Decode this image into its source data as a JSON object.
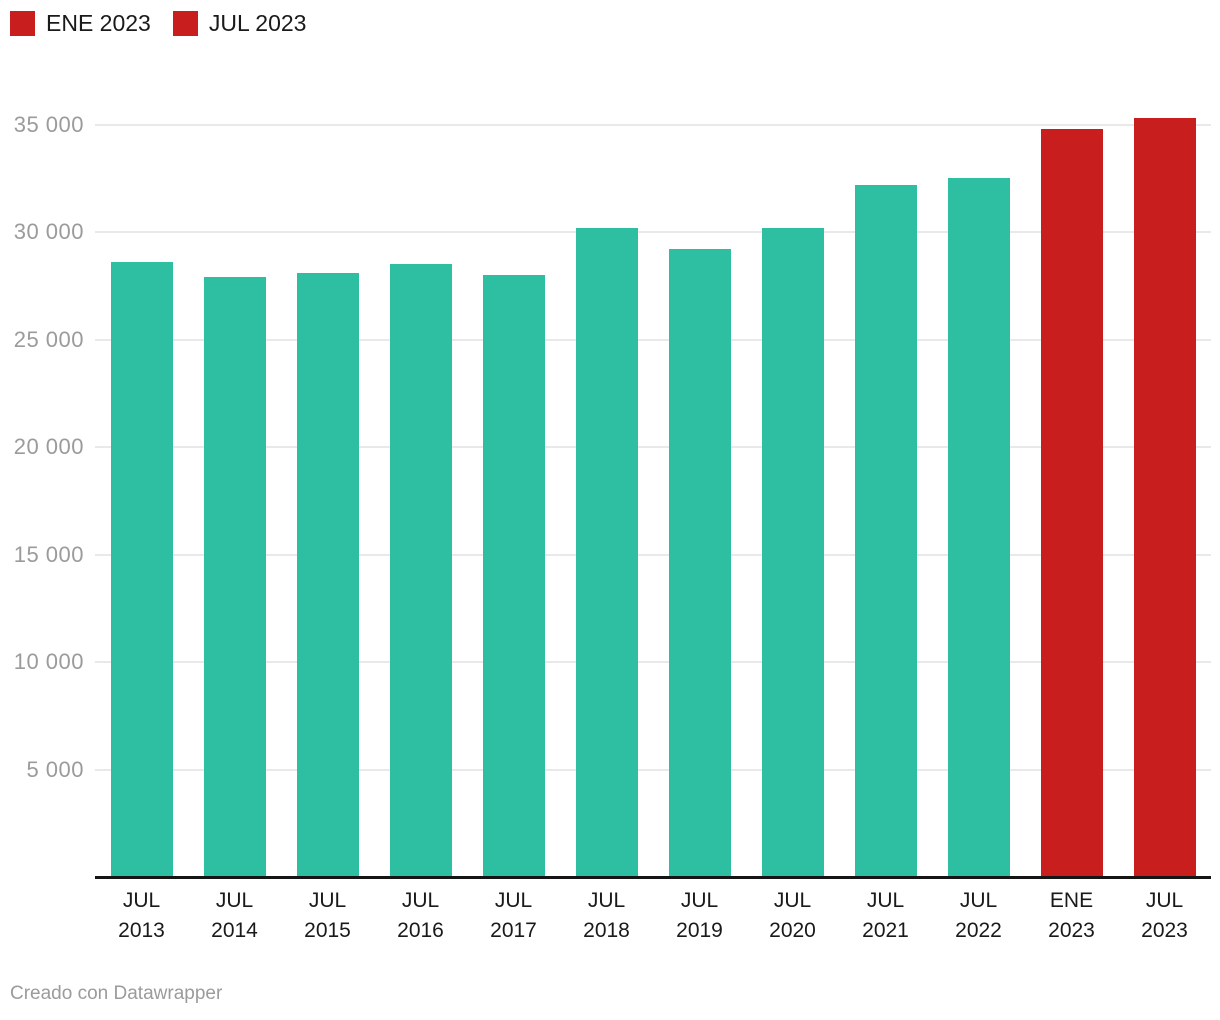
{
  "legend": {
    "items": [
      {
        "label": "ENE 2023",
        "color": "#C81E1E"
      },
      {
        "label": "JUL 2023",
        "color": "#C81E1E"
      }
    ]
  },
  "chart_data": {
    "type": "bar",
    "title": "",
    "categories": [
      "JUL 2013",
      "JUL 2014",
      "JUL 2015",
      "JUL 2016",
      "JUL 2017",
      "JUL 2018",
      "JUL 2019",
      "JUL 2020",
      "JUL 2021",
      "JUL 2022",
      "ENE 2023",
      "JUL 2023"
    ],
    "values": [
      28600,
      27900,
      28100,
      28500,
      28000,
      30200,
      29200,
      30200,
      32200,
      32500,
      34800,
      35300
    ],
    "bar_colors": [
      "teal",
      "teal",
      "teal",
      "teal",
      "teal",
      "teal",
      "teal",
      "teal",
      "teal",
      "teal",
      "red",
      "red"
    ],
    "colors": {
      "teal": "#2EBEA2",
      "red": "#C81E1E"
    },
    "xlabel": "",
    "ylabel": "",
    "ylim": [
      0,
      36500
    ],
    "grid": "horizontal",
    "legend_position": "top-left",
    "y_axis": {
      "ticks": [
        {
          "value": 5000,
          "label": "5 000"
        },
        {
          "value": 10000,
          "label": "10 000"
        },
        {
          "value": 15000,
          "label": "15 000"
        },
        {
          "value": 20000,
          "label": "20 000"
        },
        {
          "value": 25000,
          "label": "25 000"
        },
        {
          "value": 30000,
          "label": "30 000"
        },
        {
          "value": 35000,
          "label": "35 000"
        }
      ]
    }
  },
  "footer": {
    "credit": "Creado con Datawrapper"
  }
}
